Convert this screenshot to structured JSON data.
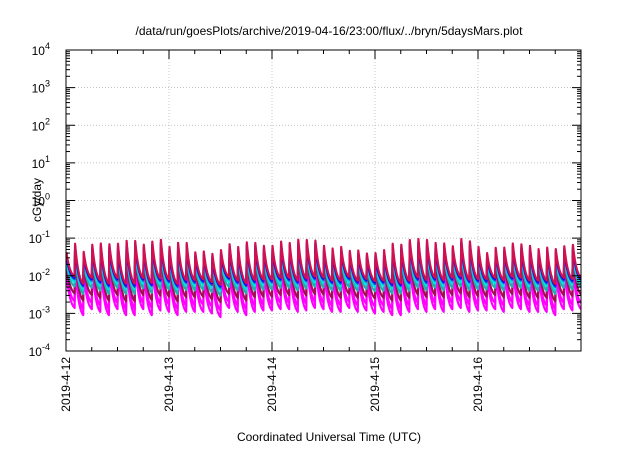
{
  "chart_data": {
    "type": "line",
    "title": "/data/run/goesPlots/archive/2019-04-16/23:00/flux/../bryn/5daysMars.plot",
    "xlabel": "Coordinated Universal Time (UTC)",
    "ylabel": "cGy/day",
    "x_scale": "time",
    "xlim": [
      "2019-04-12T00:00",
      "2019-04-17T00:00"
    ],
    "x_ticks": [
      "2019-4-12",
      "2019-4-13",
      "2019-4-14",
      "2019-4-15",
      "2019-4-16"
    ],
    "y_scale": "log",
    "ylim": [
      0.0001,
      10000
    ],
    "y_ticks": [
      {
        "base": "10",
        "exp": "-4"
      },
      {
        "base": "10",
        "exp": "-3"
      },
      {
        "base": "10",
        "exp": "-2"
      },
      {
        "base": "10",
        "exp": "-1"
      },
      {
        "base": "10",
        "exp": "0"
      },
      {
        "base": "10",
        "exp": "1"
      },
      {
        "base": "10",
        "exp": "2"
      },
      {
        "base": "10",
        "exp": "3"
      },
      {
        "base": "10",
        "exp": "4"
      }
    ],
    "grid": true,
    "series_colors": [
      "#ff00ff",
      "#ff00ff",
      "#a01050",
      "#20b0b0",
      "#00e0e0",
      "#2050d0",
      "#0000ff",
      "#d01050"
    ],
    "series": [
      {
        "color": "#ff00ff",
        "peaks": [
          0.011,
          0.018,
          0.011,
          0.017,
          0.019,
          0.018,
          0.018,
          0.022,
          0.022,
          0.017,
          0.021,
          0.023,
          0.015,
          0.019,
          0.019,
          0.011,
          0.011,
          0.01,
          0.012,
          0.018,
          0.015,
          0.02,
          0.019,
          0.016,
          0.016,
          0.021,
          0.019,
          0.023,
          0.023,
          0.022,
          0.016,
          0.014,
          0.015,
          0.012,
          0.012,
          0.01,
          0.01,
          0.012,
          0.018,
          0.017,
          0.023,
          0.024,
          0.023,
          0.019,
          0.019,
          0.016,
          0.024,
          0.021,
          0.015,
          0.01,
          0.014,
          0.014,
          0.018,
          0.017,
          0.016,
          0.013,
          0.014,
          0.013,
          0.016,
          0.017
        ],
        "mins": [
          0.0014,
          0.0009,
          0.0013,
          0.0011,
          0.0009,
          0.0013,
          0.0009,
          0.0009,
          0.0013,
          0.0009,
          0.0012,
          0.0011,
          0.0009,
          0.0011,
          0.0011,
          0.0011,
          0.001,
          0.0008,
          0.0014,
          0.0011,
          0.0009,
          0.0011,
          0.0012,
          0.0012,
          0.0013,
          0.0013,
          0.0011,
          0.0012,
          0.0014,
          0.0013,
          0.0011,
          0.0011,
          0.0014,
          0.0011,
          0.0012,
          0.001,
          0.0011,
          0.0009,
          0.0009,
          0.0011,
          0.0013,
          0.0011,
          0.0013,
          0.0011,
          0.0013,
          0.0014,
          0.0011,
          0.0012,
          0.0012,
          0.0013,
          0.0011,
          0.0014,
          0.0013,
          0.0011,
          0.0011,
          0.0011,
          0.0009,
          0.0013,
          0.0012,
          0.0013
        ]
      },
      {
        "color": "#ff00ff",
        "peaks": [
          0.015,
          0.026,
          0.015,
          0.024,
          0.026,
          0.025,
          0.026,
          0.031,
          0.03,
          0.024,
          0.029,
          0.032,
          0.021,
          0.027,
          0.027,
          0.015,
          0.016,
          0.014,
          0.017,
          0.025,
          0.021,
          0.028,
          0.027,
          0.022,
          0.022,
          0.029,
          0.027,
          0.033,
          0.032,
          0.031,
          0.022,
          0.019,
          0.021,
          0.017,
          0.017,
          0.014,
          0.014,
          0.017,
          0.025,
          0.024,
          0.032,
          0.034,
          0.032,
          0.027,
          0.026,
          0.022,
          0.034,
          0.03,
          0.021,
          0.014,
          0.02,
          0.02,
          0.026,
          0.024,
          0.022,
          0.018,
          0.02,
          0.018,
          0.022,
          0.024
        ],
        "mins": [
          0.0021,
          0.0013,
          0.0019,
          0.0016,
          0.0013,
          0.0019,
          0.0013,
          0.0013,
          0.0019,
          0.0014,
          0.0018,
          0.0017,
          0.0013,
          0.0016,
          0.0016,
          0.0017,
          0.0015,
          0.0012,
          0.002,
          0.0016,
          0.0013,
          0.0016,
          0.0017,
          0.0017,
          0.0019,
          0.0019,
          0.0016,
          0.0018,
          0.002,
          0.0019,
          0.0016,
          0.0016,
          0.002,
          0.0016,
          0.0018,
          0.0015,
          0.0016,
          0.0013,
          0.0013,
          0.0016,
          0.0019,
          0.0016,
          0.0019,
          0.0016,
          0.0019,
          0.0021,
          0.0017,
          0.0017,
          0.0017,
          0.0019,
          0.0016,
          0.002,
          0.0019,
          0.0016,
          0.0016,
          0.0016,
          0.0013,
          0.0019,
          0.0017,
          0.0019
        ]
      },
      {
        "color": "#a01050",
        "peaks": [
          0.019,
          0.032,
          0.02,
          0.03,
          0.033,
          0.032,
          0.032,
          0.039,
          0.038,
          0.03,
          0.037,
          0.041,
          0.026,
          0.034,
          0.034,
          0.019,
          0.02,
          0.017,
          0.022,
          0.032,
          0.026,
          0.035,
          0.034,
          0.028,
          0.028,
          0.037,
          0.034,
          0.041,
          0.041,
          0.039,
          0.028,
          0.024,
          0.026,
          0.021,
          0.021,
          0.018,
          0.018,
          0.022,
          0.032,
          0.031,
          0.041,
          0.043,
          0.041,
          0.034,
          0.033,
          0.028,
          0.043,
          0.037,
          0.027,
          0.018,
          0.025,
          0.025,
          0.033,
          0.031,
          0.028,
          0.023,
          0.025,
          0.023,
          0.028,
          0.03
        ],
        "mins": [
          0.0034,
          0.0022,
          0.0031,
          0.0026,
          0.0022,
          0.0031,
          0.0021,
          0.0021,
          0.0031,
          0.0023,
          0.003,
          0.0028,
          0.0021,
          0.0027,
          0.0027,
          0.0028,
          0.0024,
          0.002,
          0.0033,
          0.0026,
          0.0022,
          0.0027,
          0.0028,
          0.0028,
          0.0031,
          0.0031,
          0.0026,
          0.003,
          0.0033,
          0.0032,
          0.0026,
          0.0026,
          0.0033,
          0.0026,
          0.0029,
          0.0025,
          0.0026,
          0.0022,
          0.0022,
          0.0026,
          0.0032,
          0.0027,
          0.0031,
          0.0027,
          0.0031,
          0.0034,
          0.0027,
          0.0029,
          0.0028,
          0.0031,
          0.0027,
          0.0033,
          0.0031,
          0.0026,
          0.0026,
          0.0026,
          0.0021,
          0.0031,
          0.0029,
          0.0032
        ]
      },
      {
        "color": "#20b0b0",
        "peaks": [
          0.023,
          0.039,
          0.024,
          0.037,
          0.04,
          0.038,
          0.039,
          0.047,
          0.046,
          0.037,
          0.044,
          0.049,
          0.032,
          0.041,
          0.041,
          0.023,
          0.024,
          0.021,
          0.026,
          0.038,
          0.032,
          0.042,
          0.041,
          0.034,
          0.034,
          0.045,
          0.041,
          0.05,
          0.049,
          0.047,
          0.034,
          0.029,
          0.032,
          0.025,
          0.026,
          0.021,
          0.022,
          0.026,
          0.039,
          0.037,
          0.049,
          0.052,
          0.049,
          0.041,
          0.04,
          0.034,
          0.052,
          0.045,
          0.032,
          0.022,
          0.03,
          0.031,
          0.039,
          0.037,
          0.034,
          0.028,
          0.031,
          0.028,
          0.034,
          0.037
        ],
        "mins": [
          0.0052,
          0.0033,
          0.0048,
          0.0041,
          0.0033,
          0.0048,
          0.0033,
          0.0033,
          0.0047,
          0.0035,
          0.0046,
          0.0043,
          0.0033,
          0.0042,
          0.0041,
          0.0043,
          0.0037,
          0.003,
          0.0051,
          0.0041,
          0.0034,
          0.0041,
          0.0043,
          0.0043,
          0.0048,
          0.0048,
          0.0041,
          0.0046,
          0.0051,
          0.0049,
          0.0041,
          0.004,
          0.005,
          0.004,
          0.0045,
          0.0039,
          0.004,
          0.0034,
          0.0034,
          0.004,
          0.0049,
          0.0041,
          0.0048,
          0.0041,
          0.0048,
          0.0052,
          0.0042,
          0.0044,
          0.0043,
          0.0048,
          0.0041,
          0.0051,
          0.0048,
          0.004,
          0.004,
          0.004,
          0.0033,
          0.0048,
          0.0044,
          0.0049
        ]
      },
      {
        "color": "#00e0e0",
        "peaks": [
          0.027,
          0.046,
          0.028,
          0.043,
          0.047,
          0.045,
          0.046,
          0.055,
          0.055,
          0.043,
          0.052,
          0.058,
          0.038,
          0.049,
          0.048,
          0.027,
          0.028,
          0.025,
          0.031,
          0.045,
          0.037,
          0.05,
          0.048,
          0.04,
          0.04,
          0.053,
          0.048,
          0.059,
          0.058,
          0.056,
          0.04,
          0.034,
          0.038,
          0.03,
          0.03,
          0.025,
          0.026,
          0.031,
          0.046,
          0.044,
          0.058,
          0.061,
          0.058,
          0.048,
          0.047,
          0.04,
          0.061,
          0.053,
          0.038,
          0.026,
          0.036,
          0.036,
          0.047,
          0.044,
          0.04,
          0.033,
          0.036,
          0.033,
          0.04,
          0.043
        ],
        "mins": [
          0.0068,
          0.0043,
          0.0063,
          0.0053,
          0.0044,
          0.0062,
          0.0043,
          0.0043,
          0.0062,
          0.0045,
          0.006,
          0.0056,
          0.0043,
          0.0054,
          0.0054,
          0.0056,
          0.0048,
          0.004,
          0.0067,
          0.0053,
          0.0044,
          0.0054,
          0.0056,
          0.0056,
          0.0062,
          0.0062,
          0.0053,
          0.006,
          0.0067,
          0.0064,
          0.0053,
          0.0052,
          0.0066,
          0.0052,
          0.0058,
          0.0051,
          0.0053,
          0.0045,
          0.0044,
          0.0052,
          0.0064,
          0.0054,
          0.0063,
          0.0053,
          0.0063,
          0.0068,
          0.0055,
          0.0058,
          0.0056,
          0.0062,
          0.0053,
          0.0067,
          0.0063,
          0.0053,
          0.0052,
          0.0053,
          0.0043,
          0.0062,
          0.0058,
          0.0064
        ]
      },
      {
        "color": "#2050d0",
        "peaks": [
          0.032,
          0.054,
          0.033,
          0.051,
          0.055,
          0.053,
          0.054,
          0.065,
          0.065,
          0.051,
          0.062,
          0.069,
          0.045,
          0.058,
          0.057,
          0.032,
          0.033,
          0.029,
          0.037,
          0.053,
          0.044,
          0.059,
          0.057,
          0.047,
          0.047,
          0.062,
          0.057,
          0.069,
          0.068,
          0.066,
          0.047,
          0.041,
          0.045,
          0.035,
          0.036,
          0.03,
          0.03,
          0.037,
          0.054,
          0.052,
          0.069,
          0.073,
          0.068,
          0.057,
          0.056,
          0.047,
          0.072,
          0.063,
          0.045,
          0.03,
          0.042,
          0.043,
          0.055,
          0.052,
          0.047,
          0.039,
          0.043,
          0.039,
          0.047,
          0.051
        ],
        "mins": [
          0.0081,
          0.0052,
          0.0075,
          0.0064,
          0.0052,
          0.0074,
          0.0051,
          0.0051,
          0.0074,
          0.0054,
          0.0072,
          0.0067,
          0.0051,
          0.0065,
          0.0064,
          0.0067,
          0.0057,
          0.0048,
          0.008,
          0.0063,
          0.0053,
          0.0065,
          0.0067,
          0.0067,
          0.0075,
          0.0074,
          0.0063,
          0.0072,
          0.008,
          0.0077,
          0.0063,
          0.0062,
          0.0079,
          0.0062,
          0.007,
          0.006,
          0.0063,
          0.0054,
          0.0053,
          0.0063,
          0.0076,
          0.0064,
          0.0075,
          0.0064,
          0.0075,
          0.0081,
          0.0066,
          0.0069,
          0.0067,
          0.0075,
          0.0064,
          0.0079,
          0.0075,
          0.0063,
          0.0062,
          0.0063,
          0.0051,
          0.0074,
          0.0069,
          0.0077
        ]
      },
      {
        "color": "#0000ff",
        "peaks": [
          0.036,
          0.061,
          0.037,
          0.058,
          0.062,
          0.06,
          0.061,
          0.073,
          0.072,
          0.058,
          0.069,
          0.077,
          0.05,
          0.065,
          0.064,
          0.036,
          0.038,
          0.033,
          0.041,
          0.06,
          0.05,
          0.066,
          0.064,
          0.053,
          0.053,
          0.07,
          0.064,
          0.078,
          0.077,
          0.074,
          0.053,
          0.046,
          0.05,
          0.04,
          0.04,
          0.034,
          0.034,
          0.041,
          0.061,
          0.058,
          0.077,
          0.081,
          0.077,
          0.064,
          0.062,
          0.053,
          0.081,
          0.07,
          0.05,
          0.034,
          0.048,
          0.048,
          0.062,
          0.058,
          0.053,
          0.044,
          0.048,
          0.044,
          0.053,
          0.057
        ],
        "mins": [
          0.0089,
          0.0057,
          0.0082,
          0.007,
          0.0057,
          0.0082,
          0.0056,
          0.0056,
          0.0081,
          0.0059,
          0.0079,
          0.0074,
          0.0056,
          0.0071,
          0.0071,
          0.0074,
          0.0063,
          0.0053,
          0.0087,
          0.0069,
          0.0058,
          0.0071,
          0.0074,
          0.0074,
          0.0082,
          0.0081,
          0.007,
          0.0079,
          0.0088,
          0.0084,
          0.0069,
          0.0068,
          0.0086,
          0.0068,
          0.0077,
          0.0066,
          0.0069,
          0.0059,
          0.0058,
          0.0069,
          0.0084,
          0.0071,
          0.0082,
          0.007,
          0.0083,
          0.0089,
          0.0072,
          0.0076,
          0.0074,
          0.0082,
          0.007,
          0.0087,
          0.0082,
          0.0069,
          0.0068,
          0.0069,
          0.0056,
          0.0081,
          0.0076,
          0.0084
        ]
      },
      {
        "color": "#d01050",
        "peaks": [
          0.042,
          0.071,
          0.043,
          0.067,
          0.072,
          0.069,
          0.071,
          0.085,
          0.084,
          0.067,
          0.081,
          0.09,
          0.058,
          0.075,
          0.074,
          0.042,
          0.044,
          0.038,
          0.048,
          0.069,
          0.058,
          0.077,
          0.074,
          0.062,
          0.062,
          0.081,
          0.074,
          0.091,
          0.089,
          0.086,
          0.062,
          0.053,
          0.058,
          0.046,
          0.047,
          0.039,
          0.04,
          0.048,
          0.071,
          0.067,
          0.089,
          0.095,
          0.089,
          0.074,
          0.072,
          0.061,
          0.094,
          0.082,
          0.058,
          0.04,
          0.055,
          0.056,
          0.072,
          0.068,
          0.062,
          0.051,
          0.056,
          0.051,
          0.061,
          0.066
        ],
        "mins": [
          0.0096,
          0.0061,
          0.0089,
          0.0076,
          0.0062,
          0.0088,
          0.0061,
          0.0061,
          0.0087,
          0.0064,
          0.0085,
          0.008,
          0.006,
          0.0077,
          0.0076,
          0.008,
          0.0068,
          0.0057,
          0.0094,
          0.0075,
          0.0063,
          0.0077,
          0.008,
          0.008,
          0.0089,
          0.0088,
          0.0075,
          0.0085,
          0.0095,
          0.0091,
          0.0075,
          0.0074,
          0.0093,
          0.0074,
          0.0083,
          0.0072,
          0.0075,
          0.0064,
          0.0063,
          0.0074,
          0.0091,
          0.0076,
          0.0089,
          0.0076,
          0.0089,
          0.0096,
          0.0078,
          0.0082,
          0.008,
          0.0089,
          0.0076,
          0.0094,
          0.0089,
          0.0075,
          0.0074,
          0.0075,
          0.006,
          0.0088,
          0.0082,
          0.0091
        ]
      }
    ]
  }
}
